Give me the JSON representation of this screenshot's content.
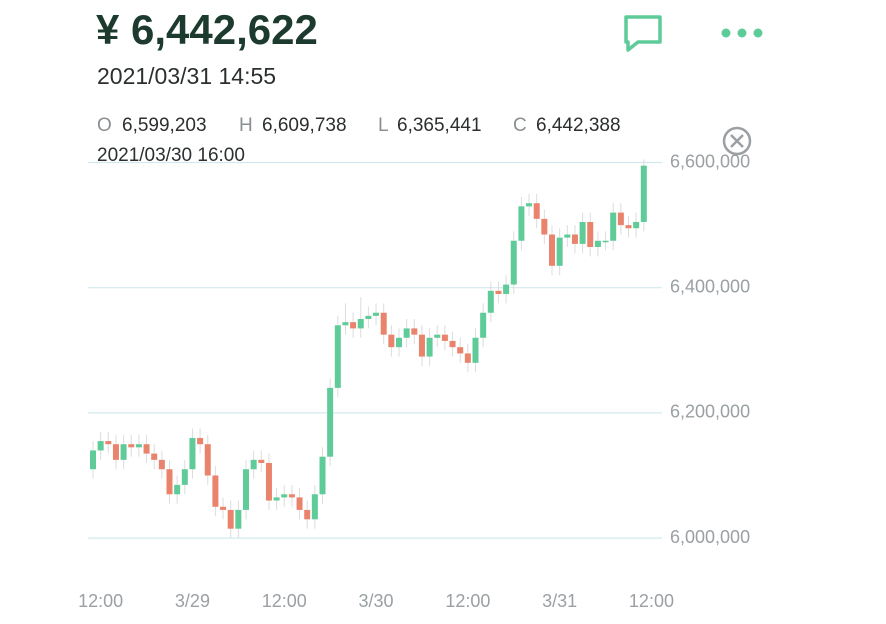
{
  "header": {
    "price": "¥ 6,442,622",
    "time": "2021/03/31 14:55"
  },
  "ohlc": {
    "o_label": "O",
    "o": "6,599,203",
    "h_label": "H",
    "h": "6,609,738",
    "l_label": "L",
    "l": "6,365,441",
    "c_label": "C",
    "c": "6,442,388",
    "time": "2021/03/30 16:00"
  },
  "chart_data": {
    "type": "candlestick",
    "up_color": "#5fcb99",
    "down_color": "#e9836b",
    "grid": true,
    "grid_color": "#d3e8ee",
    "ylim": [
      5965000,
      6620000
    ],
    "yticks": [
      {
        "value": 6000000,
        "label": "6,000,000"
      },
      {
        "value": 6200000,
        "label": "6,200,000"
      },
      {
        "value": 6400000,
        "label": "6,400,000"
      },
      {
        "value": 6600000,
        "label": "6,600,000"
      }
    ],
    "xticks": [
      {
        "value": 1,
        "label": "12:00"
      },
      {
        "value": 13,
        "label": "3/29"
      },
      {
        "value": 25,
        "label": "12:00"
      },
      {
        "value": 37,
        "label": "3/30"
      },
      {
        "value": 49,
        "label": "12:00"
      },
      {
        "value": 61,
        "label": "3/31"
      },
      {
        "value": 73,
        "label": "12:00"
      }
    ],
    "open": [
      6110000,
      6140000,
      6155000,
      6150000,
      6125000,
      6150000,
      6145000,
      6150000,
      6135000,
      6125000,
      6110000,
      6070000,
      6085000,
      6110000,
      6160000,
      6150000,
      6100000,
      6050000,
      6045000,
      6015000,
      6045000,
      6110000,
      6125000,
      6120000,
      6060000,
      6065000,
      6070000,
      6065000,
      6045000,
      6030000,
      6070000,
      6130000,
      6240000,
      6340000,
      6345000,
      6335000,
      6350000,
      6355000,
      6360000,
      6325000,
      6305000,
      6320000,
      6335000,
      6325000,
      6290000,
      6320000,
      6325000,
      6315000,
      6305000,
      6295000,
      6280000,
      6320000,
      6360000,
      6395000,
      6390000,
      6405000,
      6475000,
      6530000,
      6535000,
      6510000,
      6485000,
      6435000,
      6480000,
      6485000,
      6470000,
      6505000,
      6465000,
      6475000,
      6475000,
      6520000,
      6500000,
      6495000,
      6505000
    ],
    "high": [
      6155000,
      6170000,
      6170000,
      6165000,
      6165000,
      6165000,
      6165000,
      6165000,
      6150000,
      6140000,
      6125000,
      6100000,
      6125000,
      6175000,
      6175000,
      6165000,
      6115000,
      6065000,
      6060000,
      6060000,
      6125000,
      6140000,
      6140000,
      6135000,
      6080000,
      6085000,
      6085000,
      6080000,
      6060000,
      6085000,
      6145000,
      6255000,
      6355000,
      6375000,
      6360000,
      6385000,
      6370000,
      6375000,
      6375000,
      6340000,
      6335000,
      6350000,
      6350000,
      6340000,
      6335000,
      6340000,
      6340000,
      6330000,
      6320000,
      6310000,
      6335000,
      6375000,
      6410000,
      6410000,
      6420000,
      6490000,
      6545000,
      6550000,
      6550000,
      6525000,
      6500000,
      6495000,
      6500000,
      6500000,
      6520000,
      6520000,
      6490000,
      6490000,
      6535000,
      6535000,
      6515000,
      6520000,
      6605000
    ],
    "low": [
      6095000,
      6125000,
      6135000,
      6110000,
      6110000,
      6130000,
      6130000,
      6120000,
      6110000,
      6095000,
      6055000,
      6055000,
      6070000,
      6095000,
      6135000,
      6085000,
      6035000,
      6030000,
      6000000,
      6000000,
      6030000,
      6095000,
      6105000,
      6045000,
      6045000,
      6050000,
      6050000,
      6030000,
      6015000,
      6015000,
      6055000,
      6115000,
      6225000,
      6325000,
      6320000,
      6320000,
      6335000,
      6340000,
      6310000,
      6290000,
      6290000,
      6305000,
      6310000,
      6275000,
      6275000,
      6305000,
      6300000,
      6290000,
      6280000,
      6265000,
      6265000,
      6305000,
      6345000,
      6375000,
      6375000,
      6390000,
      6460000,
      6515000,
      6495000,
      6470000,
      6420000,
      6420000,
      6465000,
      6455000,
      6455000,
      6450000,
      6450000,
      6460000,
      6460000,
      6485000,
      6480000,
      6480000,
      6490000
    ],
    "close": [
      6140000,
      6155000,
      6150000,
      6125000,
      6150000,
      6145000,
      6150000,
      6135000,
      6125000,
      6110000,
      6070000,
      6085000,
      6110000,
      6160000,
      6150000,
      6100000,
      6050000,
      6045000,
      6015000,
      6045000,
      6110000,
      6125000,
      6120000,
      6060000,
      6065000,
      6070000,
      6065000,
      6045000,
      6030000,
      6070000,
      6130000,
      6240000,
      6340000,
      6345000,
      6335000,
      6350000,
      6355000,
      6360000,
      6325000,
      6305000,
      6320000,
      6335000,
      6325000,
      6290000,
      6320000,
      6325000,
      6315000,
      6305000,
      6295000,
      6280000,
      6320000,
      6360000,
      6395000,
      6390000,
      6405000,
      6475000,
      6530000,
      6535000,
      6510000,
      6485000,
      6435000,
      6480000,
      6485000,
      6470000,
      6505000,
      6465000,
      6475000,
      6475000,
      6520000,
      6500000,
      6495000,
      6505000,
      6595000
    ]
  }
}
